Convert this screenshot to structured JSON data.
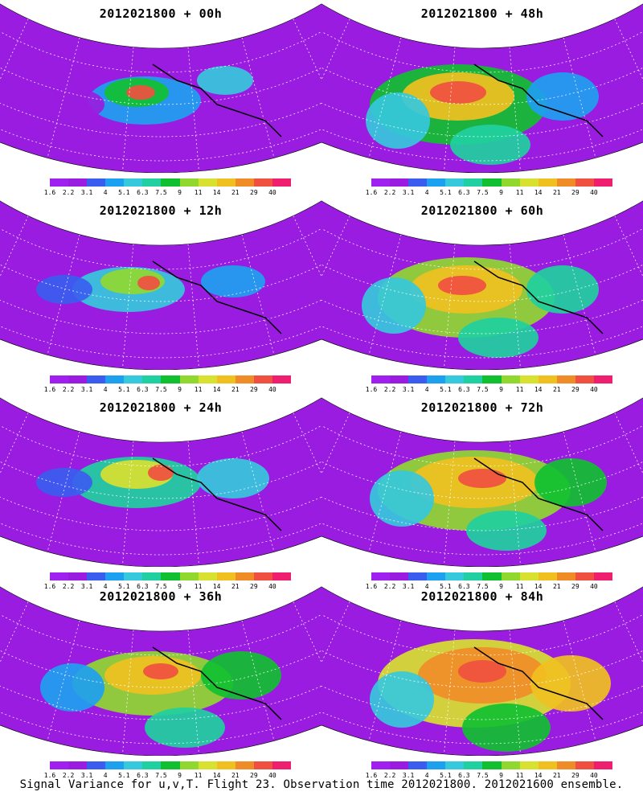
{
  "chart_data": [
    {
      "type": "heatmap",
      "title": "2012021800 + 00h"
    },
    {
      "type": "heatmap",
      "title": "2012021800 + 48h"
    },
    {
      "type": "heatmap",
      "title": "2012021800 + 12h"
    },
    {
      "type": "heatmap",
      "title": "2012021800 + 60h"
    },
    {
      "type": "heatmap",
      "title": "2012021800 + 24h"
    },
    {
      "type": "heatmap",
      "title": "2012021800 + 72h"
    },
    {
      "type": "heatmap",
      "title": "2012021800 + 36h"
    },
    {
      "type": "heatmap",
      "title": "2012021800 + 84h"
    }
  ],
  "colorbar": {
    "labels": [
      "1.6",
      "2.2",
      "3.1",
      "4",
      "5.1",
      "6.3",
      "7.5",
      "9",
      "11",
      "14",
      "21",
      "29",
      "40"
    ],
    "colors": [
      "#a020f0",
      "#9a1ce0",
      "#3a5df0",
      "#1ea0f0",
      "#36c8dc",
      "#20d0a0",
      "#10c030",
      "#90d830",
      "#d8e030",
      "#f0c020",
      "#f08c28",
      "#f05040",
      "#f01e6e"
    ]
  },
  "caption": "Signal Variance for u,v,T. Flight 23. Observation time 2012021800. 2012021600 ensemble."
}
